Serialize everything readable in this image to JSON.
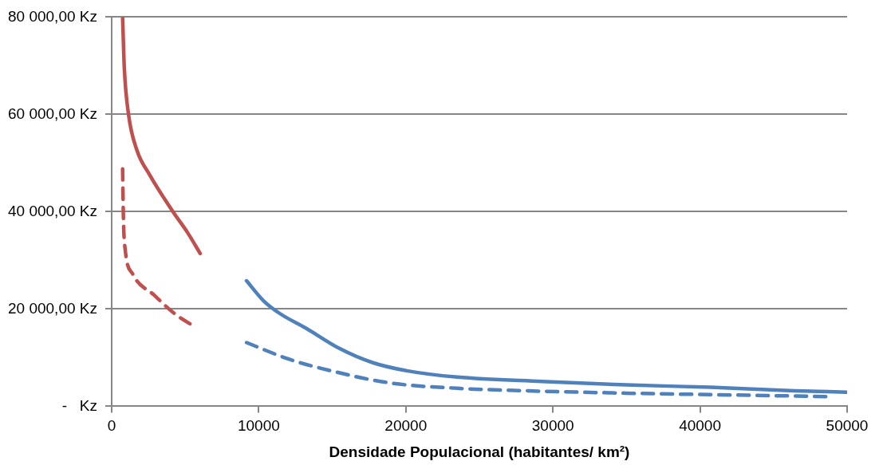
{
  "chart_data": {
    "type": "line",
    "xlabel": "Densidade Populacional (habitantes/ km²)",
    "xlim": [
      0,
      50000
    ],
    "xticks": [
      0,
      10000,
      20000,
      30000,
      40000,
      50000
    ],
    "ylim": [
      0,
      80000
    ],
    "yticks": [
      {
        "value": 0,
        "label": "-   Kz"
      },
      {
        "value": 20000,
        "label": "20 000,00 Kz"
      },
      {
        "value": 40000,
        "label": "40 000,00 Kz"
      },
      {
        "value": 60000,
        "label": "60 000,00 Kz"
      },
      {
        "value": 80000,
        "label": "80 000,00 Kz"
      }
    ],
    "grid": "y",
    "legend": false,
    "marker": "none",
    "series": [
      {
        "color": "#c0504d",
        "line_style": "solid",
        "x": [
          745,
          860,
          1147,
          1720,
          2580,
          4190,
          5160,
          6020
        ],
        "values": [
          80000,
          69600,
          60000,
          52600,
          47600,
          39900,
          35700,
          31400
        ]
      },
      {
        "color": "#c0504d",
        "line_style": "dashed",
        "x": [
          745,
          803,
          917,
          1430,
          2870,
          4300,
          5560
        ],
        "values": [
          48800,
          38200,
          32300,
          27200,
          22900,
          19000,
          16500
        ]
      },
      {
        "color": "#4f81bd",
        "line_style": "solid",
        "x": [
          9170,
          10320,
          11470,
          13190,
          15480,
          17720,
          20070,
          23510,
          29240,
          34980,
          40710,
          46440,
          50000
        ],
        "values": [
          25800,
          21700,
          19000,
          16100,
          11900,
          9000,
          7300,
          6000,
          5100,
          4400,
          3900,
          3200,
          2900
        ]
      },
      {
        "color": "#4f81bd",
        "line_style": "dashed",
        "x": [
          9170,
          12040,
          14910,
          18920,
          23510,
          29240,
          34980,
          40710,
          48740
        ],
        "values": [
          13100,
          9700,
          7300,
          4800,
          3700,
          3100,
          2700,
          2400,
          2000
        ]
      }
    ]
  }
}
